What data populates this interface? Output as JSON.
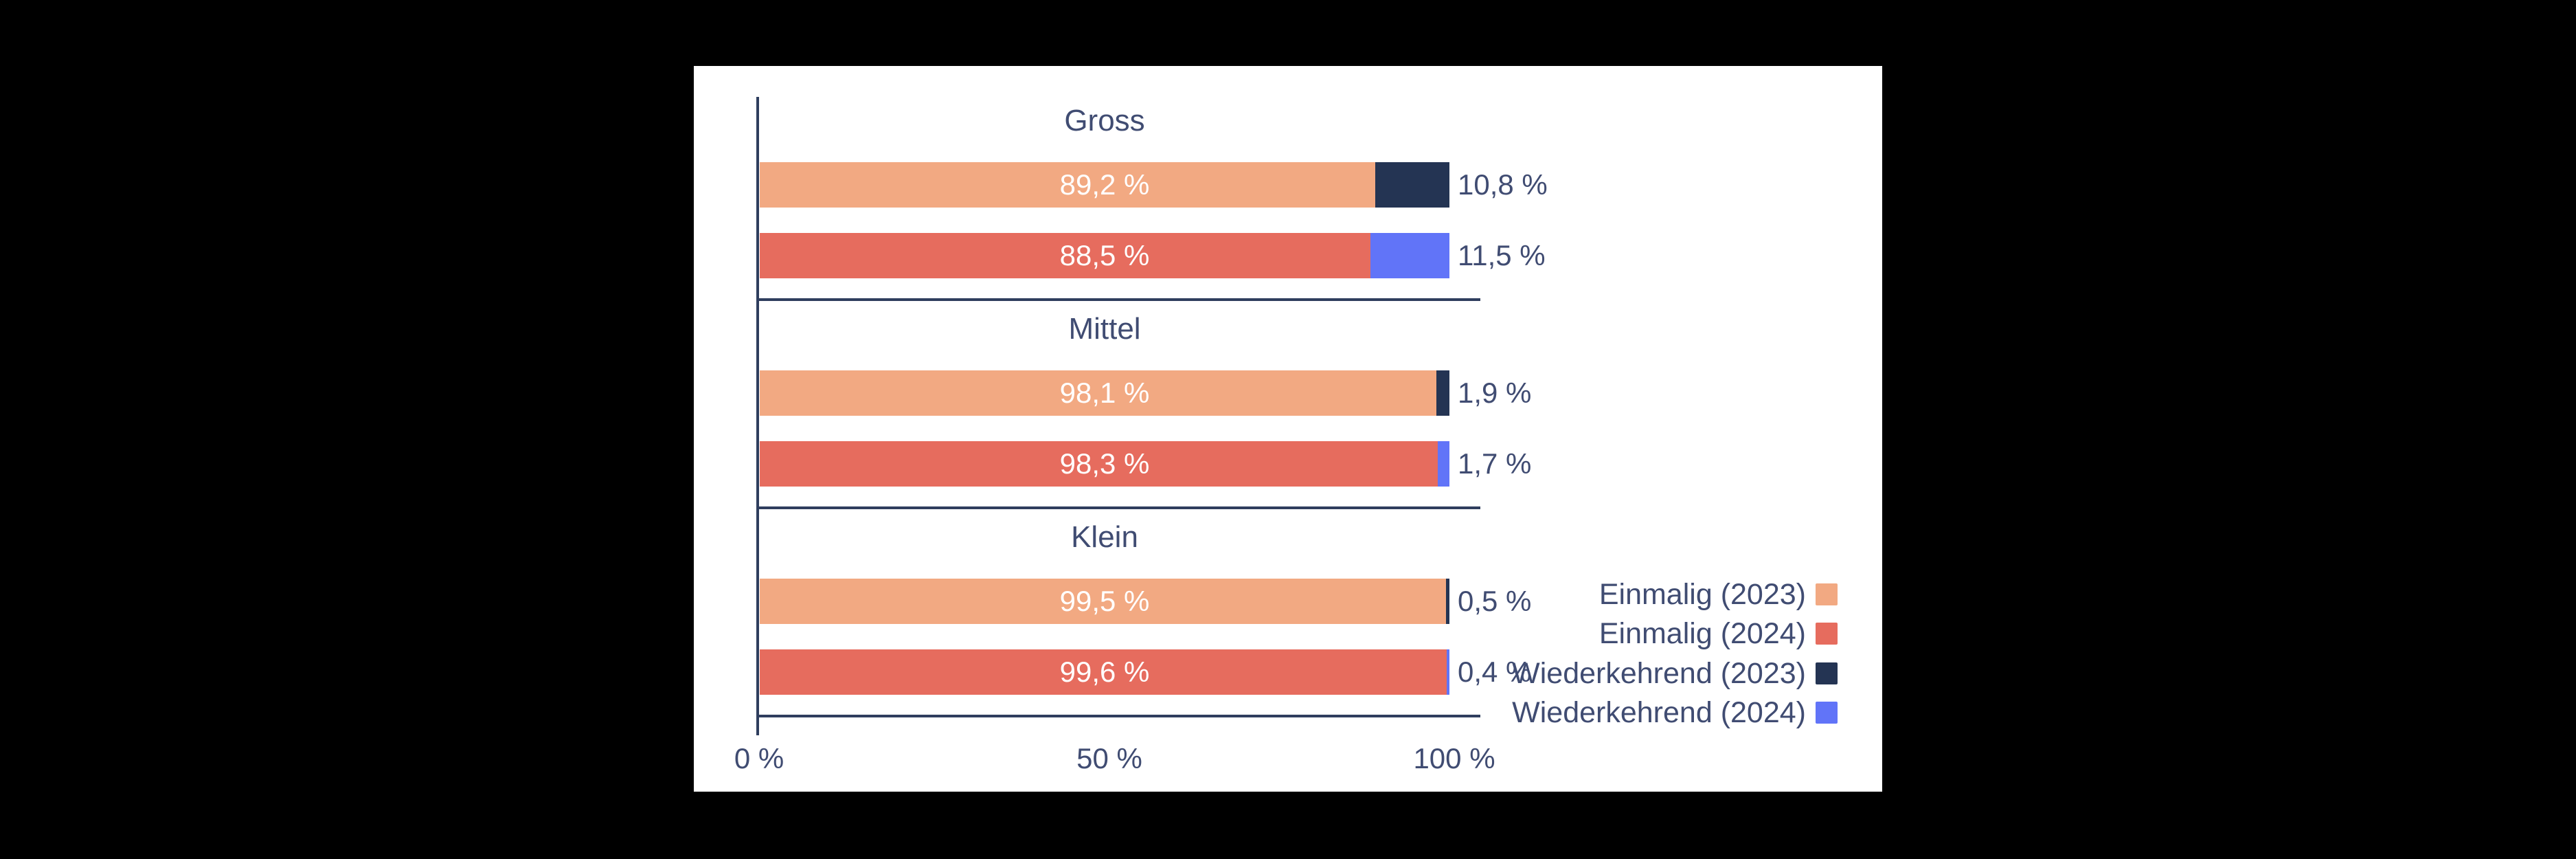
{
  "colors": {
    "background": "#000000",
    "card": "#ffffff",
    "line": "#2f3e5e",
    "text": "#404c72",
    "bar_label": "#ffffff",
    "einmalig_2023": "#f2a982",
    "einmalig_2024": "#e66c5e",
    "wiederkehrend_2023": "#243453",
    "wiederkehrend_2024": "#6174f8"
  },
  "chart_data": {
    "type": "bar",
    "orientation": "horizontal",
    "stacked": true,
    "value_unit": "%",
    "grid": false,
    "legend_position": "right-bottom",
    "x_axis": {
      "min": 0,
      "max": 100,
      "tick_labels": [
        "0 %",
        "50 %",
        "100 %"
      ]
    },
    "groups": [
      {
        "label": "Gross",
        "rows": [
          {
            "year": "2023",
            "einmalig": 89.2,
            "wiederkehrend": 10.8,
            "einmalig_label": "89,2 %",
            "wiederkehrend_label": "10,8 %"
          },
          {
            "year": "2024",
            "einmalig": 88.5,
            "wiederkehrend": 11.5,
            "einmalig_label": "88,5 %",
            "wiederkehrend_label": "11,5 %"
          }
        ]
      },
      {
        "label": "Mittel",
        "rows": [
          {
            "year": "2023",
            "einmalig": 98.1,
            "wiederkehrend": 1.9,
            "einmalig_label": "98,1 %",
            "wiederkehrend_label": "1,9 %"
          },
          {
            "year": "2024",
            "einmalig": 98.3,
            "wiederkehrend": 1.7,
            "einmalig_label": "98,3 %",
            "wiederkehrend_label": "1,7 %"
          }
        ]
      },
      {
        "label": "Klein",
        "rows": [
          {
            "year": "2023",
            "einmalig": 99.5,
            "wiederkehrend": 0.5,
            "einmalig_label": "99,5 %",
            "wiederkehrend_label": "0,5 %"
          },
          {
            "year": "2024",
            "einmalig": 99.6,
            "wiederkehrend": 0.4,
            "einmalig_label": "99,6 %",
            "wiederkehrend_label": "0,4 %"
          }
        ]
      }
    ],
    "legend": [
      {
        "label": "Einmalig (2023)",
        "color_key": "einmalig_2023"
      },
      {
        "label": "Einmalig (2024)",
        "color_key": "einmalig_2024"
      },
      {
        "label": "Wiederkehrend (2023)",
        "color_key": "wiederkehrend_2023"
      },
      {
        "label": "Wiederkehrend (2024)",
        "color_key": "wiederkehrend_2024"
      }
    ]
  }
}
